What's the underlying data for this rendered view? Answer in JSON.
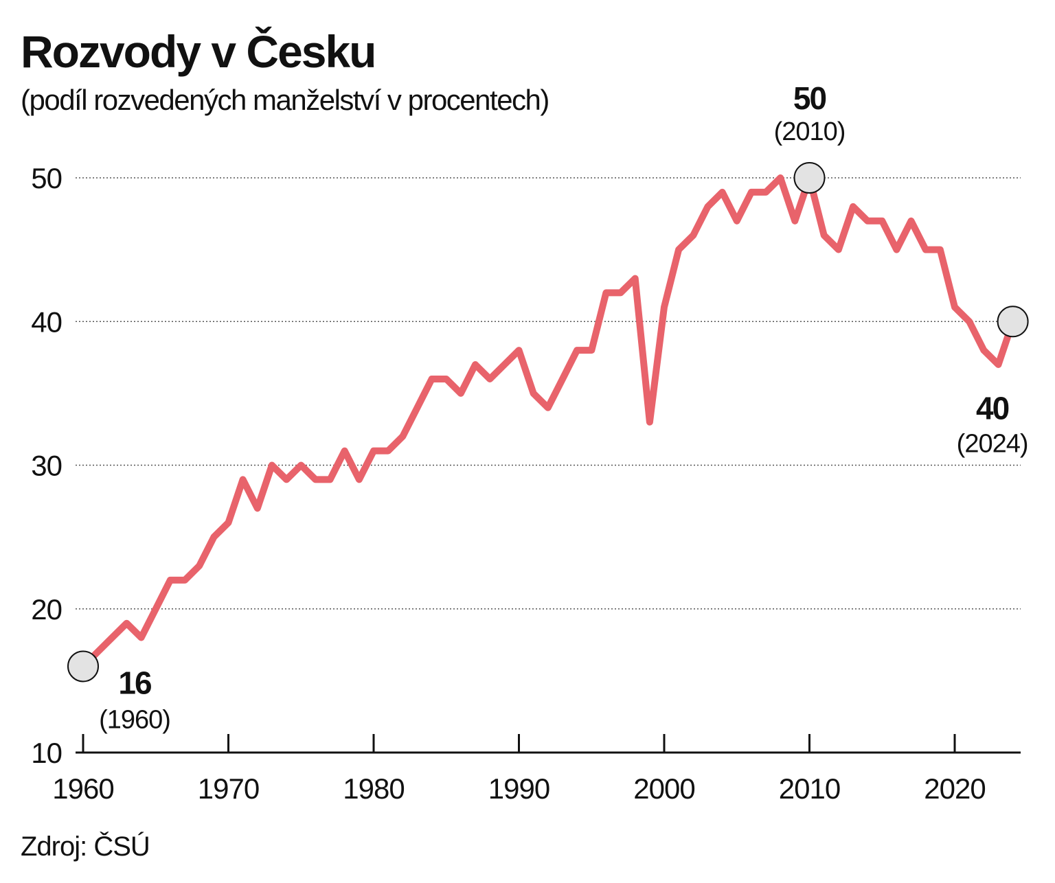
{
  "chart_data": {
    "type": "line",
    "title": "Rozvody v Česku",
    "subtitle": "(podíl rozvedených manželství v procentech)",
    "xlabel": "",
    "ylabel": "",
    "xlim": [
      1960,
      2024
    ],
    "ylim": [
      10,
      50
    ],
    "x_ticks": [
      "1960",
      "1970",
      "1980",
      "1990",
      "2000",
      "2010",
      "2020"
    ],
    "y_ticks": [
      "10",
      "20",
      "30",
      "40",
      "50"
    ],
    "grid": "horizontal dotted",
    "line_color": "#e8636b",
    "x": [
      1960,
      1961,
      1962,
      1963,
      1964,
      1965,
      1966,
      1967,
      1968,
      1969,
      1970,
      1971,
      1972,
      1973,
      1974,
      1975,
      1976,
      1977,
      1978,
      1979,
      1980,
      1981,
      1982,
      1983,
      1984,
      1985,
      1986,
      1987,
      1988,
      1989,
      1990,
      1991,
      1992,
      1993,
      1994,
      1995,
      1996,
      1997,
      1998,
      1999,
      2000,
      2001,
      2002,
      2003,
      2004,
      2005,
      2006,
      2007,
      2008,
      2009,
      2010,
      2011,
      2012,
      2013,
      2014,
      2015,
      2016,
      2017,
      2018,
      2019,
      2020,
      2021,
      2022,
      2023,
      2024
    ],
    "values": [
      16,
      17,
      18,
      19,
      18,
      20,
      22,
      22,
      23,
      25,
      26,
      29,
      27,
      30,
      29,
      30,
      29,
      29,
      31,
      29,
      31,
      31,
      32,
      34,
      36,
      36,
      35,
      37,
      36,
      37,
      38,
      35,
      34,
      36,
      38,
      38,
      42,
      42,
      43,
      33,
      41,
      45,
      46,
      48,
      49,
      47,
      49,
      49,
      50,
      47,
      50,
      46,
      45,
      48,
      47,
      47,
      45,
      47,
      45,
      45,
      41,
      40,
      38,
      37,
      40
    ],
    "annotations": [
      {
        "x": 1960,
        "y": 16,
        "value": "16",
        "year": "(1960)"
      },
      {
        "x": 2010,
        "y": 50,
        "value": "50",
        "year": "(2010)"
      },
      {
        "x": 2024,
        "y": 40,
        "value": "40",
        "year": "(2024)"
      }
    ],
    "source": "Zdroj: ČSÚ"
  }
}
